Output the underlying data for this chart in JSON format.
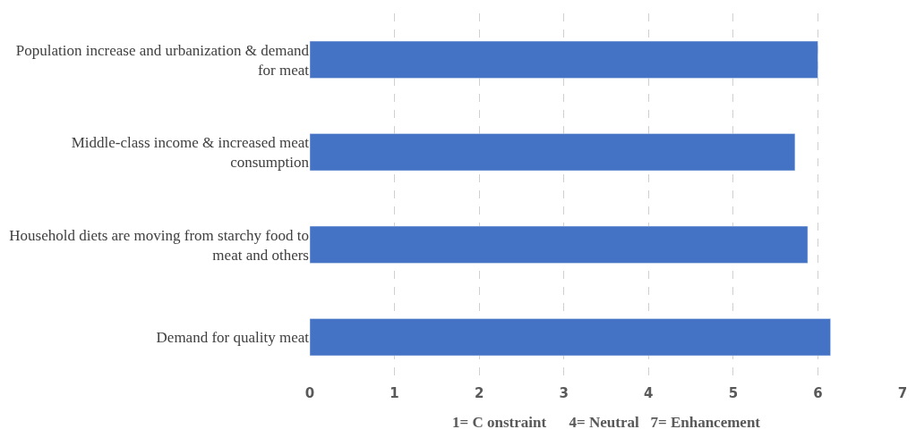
{
  "chart_data": {
    "type": "bar",
    "orientation": "horizontal",
    "categories": [
      "Population increase and urbanization & demand for meat",
      "Middle-class income & increased meat consumption",
      "Household diets are moving from starchy food to meat and others",
      "Demand for quality meat"
    ],
    "values": [
      6.0,
      5.73,
      5.88,
      6.15
    ],
    "color": "#4472c4",
    "xlabel": "1= C onstraint      4= Neutral   7= Enhancement",
    "xlim": [
      0,
      7
    ],
    "xticks": [
      0,
      1,
      2,
      3,
      4,
      5,
      6,
      7
    ],
    "grid": "x"
  }
}
